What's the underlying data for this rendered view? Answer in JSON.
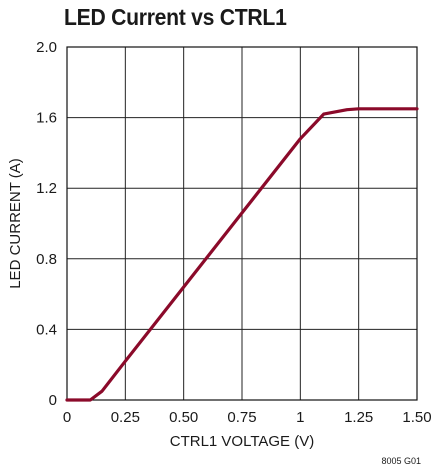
{
  "figure_code": "8005 G01",
  "chart_data": {
    "type": "line",
    "title": "LED Current vs CTRL1",
    "xlabel": "CTRL1 VOLTAGE (V)",
    "ylabel": "LED CURRENT (A)",
    "xlim": [
      0,
      1.5
    ],
    "ylim": [
      0,
      2.0
    ],
    "x_ticks": [
      0,
      0.25,
      0.5,
      0.75,
      1,
      1.25,
      1.5
    ],
    "x_tick_labels": [
      "0",
      "0.25",
      "0.50",
      "0.75",
      "1",
      "1.25",
      "1.50"
    ],
    "y_ticks": [
      0,
      0.4,
      0.8,
      1.2,
      1.6,
      2.0
    ],
    "y_tick_labels": [
      "0",
      "0.4",
      "0.8",
      "1.2",
      "1.6",
      "2.0"
    ],
    "grid": true,
    "line_color": "#8b0a2a",
    "series": [
      {
        "x": [
          0,
          0.1,
          0.15,
          0.25,
          0.5,
          0.75,
          1.0,
          1.1,
          1.2,
          1.25,
          1.5
        ],
        "y": [
          0,
          0,
          0.05,
          0.22,
          0.64,
          1.06,
          1.48,
          1.62,
          1.645,
          1.65,
          1.65
        ]
      }
    ]
  }
}
